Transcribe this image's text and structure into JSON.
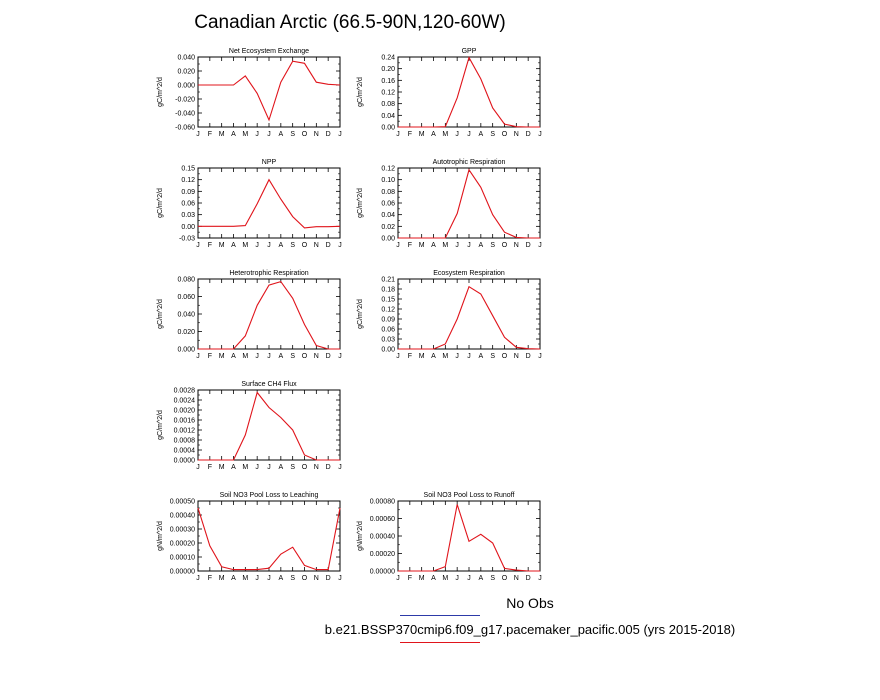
{
  "figure": {
    "title": "Canadian Arctic (66.5-90N,120-60W)",
    "legend": {
      "obs_label": "No Obs",
      "obs_line_color": "#2d3aa8",
      "case_label": "b.e21.BSSP370cmip6.f09_g17.pacemaker_pacific.005 (yrs 2015-2018)",
      "case_line_color": "#e0141b"
    }
  },
  "chart_data": [
    {
      "type": "line",
      "title": "Net Ecosystem Exchange",
      "ylabel": "gC/m^2/d",
      "categories": [
        "J",
        "F",
        "M",
        "A",
        "M",
        "J",
        "J",
        "A",
        "S",
        "O",
        "N",
        "D",
        "J"
      ],
      "ylim": [
        -0.06,
        0.04
      ],
      "yticks": [
        "0.040",
        "0.020",
        "0.000",
        "-0.020",
        "-0.040",
        "-0.060"
      ],
      "series": [
        {
          "color": "#e0141b",
          "values": [
            0.0,
            0.0,
            0.0,
            0.0,
            0.013,
            -0.012,
            -0.05,
            0.004,
            0.034,
            0.031,
            0.004,
            0.001,
            0.0
          ]
        }
      ]
    },
    {
      "type": "line",
      "title": "GPP",
      "ylabel": "gC/m^2/d",
      "categories": [
        "J",
        "F",
        "M",
        "A",
        "M",
        "J",
        "J",
        "A",
        "S",
        "O",
        "N",
        "D",
        "J"
      ],
      "ylim": [
        0,
        0.24
      ],
      "yticks": [
        "0.24",
        "0.20",
        "0.16",
        "0.12",
        "0.08",
        "0.04",
        "0.00"
      ],
      "series": [
        {
          "color": "#e0141b",
          "values": [
            0.0,
            0.0,
            0.0,
            0.0,
            0.001,
            0.1,
            0.238,
            0.165,
            0.065,
            0.01,
            0.001,
            0.0,
            0.0
          ]
        }
      ]
    },
    {
      "type": "line",
      "title": "NPP",
      "ylabel": "gC/m^2/d",
      "categories": [
        "J",
        "F",
        "M",
        "A",
        "M",
        "J",
        "J",
        "A",
        "S",
        "O",
        "N",
        "D",
        "J"
      ],
      "ylim": [
        -0.03,
        0.15
      ],
      "yticks": [
        "0.15",
        "0.12",
        "0.09",
        "0.06",
        "0.03",
        "0.00",
        "-0.03"
      ],
      "series": [
        {
          "color": "#e0141b",
          "values": [
            0.0,
            0.0,
            0.0,
            0.0,
            0.002,
            0.058,
            0.12,
            0.07,
            0.025,
            -0.004,
            -0.001,
            -0.001,
            0.0
          ]
        }
      ]
    },
    {
      "type": "line",
      "title": "Autotrophic Respiration",
      "ylabel": "gC/m^2/d",
      "categories": [
        "J",
        "F",
        "M",
        "A",
        "M",
        "J",
        "J",
        "A",
        "S",
        "O",
        "N",
        "D",
        "J"
      ],
      "ylim": [
        0,
        0.12
      ],
      "yticks": [
        "0.12",
        "0.10",
        "0.08",
        "0.06",
        "0.04",
        "0.02",
        "0.00"
      ],
      "series": [
        {
          "color": "#e0141b",
          "values": [
            0.0,
            0.0,
            0.0,
            0.0,
            0.0,
            0.042,
            0.117,
            0.087,
            0.04,
            0.01,
            0.001,
            0.0,
            0.0
          ]
        }
      ]
    },
    {
      "type": "line",
      "title": "Heterotrophic Respiration",
      "ylabel": "gC/m^2/d",
      "categories": [
        "J",
        "F",
        "M",
        "A",
        "M",
        "J",
        "J",
        "A",
        "S",
        "O",
        "N",
        "D",
        "J"
      ],
      "ylim": [
        0,
        0.08
      ],
      "yticks": [
        "0.080",
        "0.060",
        "0.040",
        "0.020",
        "0.000"
      ],
      "series": [
        {
          "color": "#e0141b",
          "values": [
            0.0,
            0.0,
            0.0,
            0.0,
            0.015,
            0.05,
            0.073,
            0.077,
            0.058,
            0.028,
            0.004,
            0.0,
            0.0
          ]
        }
      ]
    },
    {
      "type": "line",
      "title": "Ecosystem Respiration",
      "ylabel": "gC/m^2/d",
      "categories": [
        "J",
        "F",
        "M",
        "A",
        "M",
        "J",
        "J",
        "A",
        "S",
        "O",
        "N",
        "D",
        "J"
      ],
      "ylim": [
        0,
        0.21
      ],
      "yticks": [
        "0.21",
        "0.18",
        "0.15",
        "0.12",
        "0.09",
        "0.06",
        "0.03",
        "0.00"
      ],
      "series": [
        {
          "color": "#e0141b",
          "values": [
            0.0,
            0.0,
            0.0,
            0.0,
            0.015,
            0.09,
            0.187,
            0.165,
            0.1,
            0.035,
            0.005,
            0.001,
            0.0
          ]
        }
      ]
    },
    {
      "type": "line",
      "title": "Surface CH4 Flux",
      "ylabel": "gC/m^2/d",
      "categories": [
        "J",
        "F",
        "M",
        "A",
        "M",
        "J",
        "J",
        "A",
        "S",
        "O",
        "N",
        "D",
        "J"
      ],
      "ylim": [
        0,
        0.0028
      ],
      "yticks": [
        "0.0028",
        "0.0024",
        "0.0020",
        "0.0016",
        "0.0012",
        "0.0008",
        "0.0004",
        "0.0000"
      ],
      "series": [
        {
          "color": "#e0141b",
          "values": [
            0.0,
            0.0,
            0.0,
            0.0,
            0.001,
            0.0027,
            0.0021,
            0.0017,
            0.0012,
            0.0002,
            0.0,
            0.0,
            0.0
          ]
        }
      ]
    },
    {
      "type": "line",
      "title": "Soil NO3 Pool Loss to Leaching",
      "ylabel": "gN/m^2/d",
      "categories": [
        "J",
        "F",
        "M",
        "A",
        "M",
        "J",
        "J",
        "A",
        "S",
        "O",
        "N",
        "D",
        "J"
      ],
      "ylim": [
        0,
        0.0005
      ],
      "yticks": [
        "0.00050",
        "0.00040",
        "0.00030",
        "0.00020",
        "0.00010",
        "0.00000"
      ],
      "series": [
        {
          "color": "#e0141b",
          "values": [
            0.00045,
            0.00018,
            3e-05,
            1e-05,
            1e-05,
            1e-05,
            2e-05,
            0.00012,
            0.00017,
            4e-05,
            1e-05,
            1e-05,
            0.00045
          ]
        }
      ]
    },
    {
      "type": "line",
      "title": "Soil NO3 Pool Loss to Runoff",
      "ylabel": "gN/m^2/d",
      "categories": [
        "J",
        "F",
        "M",
        "A",
        "M",
        "J",
        "J",
        "A",
        "S",
        "O",
        "N",
        "D",
        "J"
      ],
      "ylim": [
        0,
        0.0008
      ],
      "yticks": [
        "0.00080",
        "0.00060",
        "0.00040",
        "0.00020",
        "0.00000"
      ],
      "series": [
        {
          "color": "#e0141b",
          "values": [
            0.0,
            0.0,
            0.0,
            0.0,
            5e-05,
            0.00076,
            0.00034,
            0.00042,
            0.00032,
            3e-05,
            1e-05,
            0.0,
            0.0
          ]
        }
      ]
    }
  ]
}
